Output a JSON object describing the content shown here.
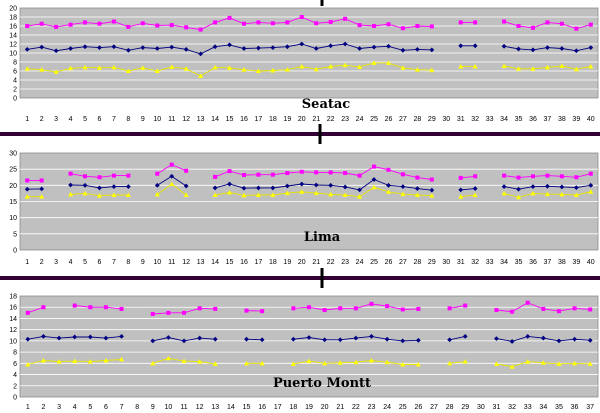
{
  "colors": {
    "max": "#ff00ff",
    "mean": "#000080",
    "min": "#ffff00",
    "plot_bg": "#c0c0c0",
    "grid": "#ffffff",
    "divider": "#330033"
  },
  "chart_data": [
    {
      "type": "line",
      "title": "Seatac",
      "ylim": [
        0,
        20
      ],
      "yticks": [
        0,
        2,
        4,
        6,
        8,
        10,
        12,
        14,
        16,
        18,
        20
      ],
      "grid": true,
      "legend": "none",
      "categories": [
        1,
        2,
        3,
        4,
        5,
        6,
        7,
        8,
        9,
        10,
        11,
        12,
        13,
        14,
        15,
        16,
        17,
        18,
        19,
        20,
        21,
        22,
        23,
        24,
        25,
        26,
        27,
        28,
        29,
        30,
        31,
        32,
        33,
        34,
        35,
        36,
        37,
        38,
        39,
        40
      ],
      "series": [
        {
          "key": "max",
          "values": [
            16.0,
            16.5,
            15.8,
            16.3,
            16.8,
            16.5,
            17.0,
            15.8,
            16.6,
            16.1,
            16.2,
            15.7,
            15.2,
            16.8,
            17.8,
            16.5,
            16.8,
            16.6,
            16.8,
            18.0,
            16.6,
            16.9,
            17.6,
            16.2,
            16.0,
            16.4,
            15.5,
            16.0,
            15.9,
            null,
            16.8,
            16.8,
            null,
            17.0,
            16.0,
            15.6,
            16.8,
            16.5,
            15.4,
            16.3
          ]
        },
        {
          "key": "mean",
          "values": [
            10.8,
            11.3,
            10.5,
            11.0,
            11.4,
            11.2,
            11.4,
            10.6,
            11.2,
            11.0,
            11.3,
            10.8,
            9.8,
            11.4,
            11.8,
            11.0,
            11.1,
            11.2,
            11.4,
            12.0,
            11.0,
            11.6,
            12.0,
            11.0,
            11.3,
            11.5,
            10.6,
            10.8,
            10.7,
            null,
            11.6,
            11.6,
            null,
            11.5,
            10.9,
            10.7,
            11.2,
            11.0,
            10.5,
            11.2
          ]
        },
        {
          "key": "min",
          "values": [
            6.5,
            6.3,
            5.8,
            6.6,
            6.8,
            6.7,
            6.8,
            6.0,
            6.7,
            6.0,
            6.9,
            6.5,
            4.9,
            6.8,
            6.7,
            6.3,
            6.0,
            6.1,
            6.3,
            7.0,
            6.4,
            7.0,
            7.3,
            6.9,
            7.8,
            7.8,
            6.7,
            6.3,
            6.2,
            null,
            7.0,
            7.0,
            null,
            7.1,
            6.5,
            6.5,
            6.8,
            7.1,
            6.4,
            7.0
          ]
        }
      ]
    },
    {
      "type": "line",
      "title": "Lima",
      "ylim": [
        0,
        30
      ],
      "yticks": [
        0,
        5,
        10,
        15,
        20,
        25,
        30
      ],
      "grid": true,
      "legend": "none",
      "categories": [
        1,
        2,
        3,
        4,
        5,
        6,
        7,
        8,
        9,
        10,
        11,
        12,
        13,
        14,
        15,
        16,
        17,
        18,
        19,
        20,
        21,
        22,
        23,
        24,
        25,
        26,
        27,
        28,
        29,
        30,
        31,
        32,
        33,
        34,
        35,
        36,
        37,
        38,
        39,
        40
      ],
      "series": [
        {
          "key": "max",
          "values": [
            21.5,
            21.5,
            null,
            23.6,
            22.8,
            22.5,
            23.0,
            23.0,
            null,
            23.6,
            26.4,
            24.5,
            null,
            22.6,
            24.4,
            23.2,
            23.3,
            23.3,
            23.8,
            24.2,
            24.0,
            24.0,
            23.8,
            23.0,
            25.8,
            24.8,
            23.4,
            22.4,
            21.8,
            null,
            22.3,
            22.8,
            null,
            23.0,
            22.4,
            22.8,
            23.0,
            22.8,
            22.5,
            23.6
          ]
        },
        {
          "key": "mean",
          "values": [
            18.8,
            18.9,
            null,
            20.1,
            20.0,
            19.2,
            19.6,
            19.6,
            null,
            20.0,
            22.8,
            19.8,
            null,
            19.2,
            20.4,
            19.1,
            19.2,
            19.2,
            19.8,
            20.4,
            20.1,
            20.0,
            19.5,
            18.6,
            21.8,
            20.0,
            19.6,
            19.0,
            18.5,
            null,
            18.6,
            19.0,
            null,
            19.6,
            18.8,
            19.6,
            19.7,
            19.5,
            19.3,
            20.0
          ]
        },
        {
          "key": "min",
          "values": [
            16.5,
            16.5,
            null,
            17.2,
            17.5,
            16.8,
            17.0,
            17.0,
            null,
            17.2,
            20.4,
            17.0,
            null,
            17.0,
            17.8,
            16.9,
            17.0,
            17.0,
            17.6,
            18.0,
            17.6,
            17.2,
            17.0,
            16.5,
            19.4,
            18.0,
            17.3,
            17.0,
            16.8,
            null,
            16.5,
            17.0,
            null,
            17.5,
            16.3,
            17.5,
            17.3,
            17.2,
            17.0,
            18.0
          ]
        }
      ]
    },
    {
      "type": "line",
      "title": "Puerto Montt",
      "ylim": [
        0,
        18
      ],
      "yticks": [
        0,
        2,
        4,
        6,
        8,
        10,
        12,
        14,
        16,
        18
      ],
      "grid": true,
      "legend": "none",
      "categories": [
        1,
        2,
        3,
        4,
        5,
        6,
        7,
        8,
        9,
        10,
        11,
        12,
        13,
        14,
        15,
        16,
        17,
        18,
        19,
        20,
        21,
        22,
        23,
        24,
        25,
        26,
        27,
        28,
        29,
        30,
        31,
        32,
        33,
        34,
        35,
        36,
        37
      ],
      "series": [
        {
          "key": "max",
          "values": [
            15.0,
            16.0,
            null,
            16.3,
            16.0,
            16.0,
            15.7,
            null,
            14.8,
            15.0,
            15.0,
            15.8,
            15.7,
            null,
            15.4,
            15.3,
            null,
            15.8,
            16.0,
            15.5,
            15.8,
            15.8,
            16.6,
            16.2,
            15.6,
            15.7,
            null,
            15.8,
            16.3,
            null,
            15.5,
            15.2,
            16.8,
            15.7,
            15.3,
            15.8,
            15.6
          ]
        },
        {
          "key": "mean",
          "values": [
            10.3,
            10.8,
            10.5,
            10.7,
            10.7,
            10.5,
            10.8,
            null,
            10.0,
            10.6,
            10.0,
            10.5,
            10.3,
            null,
            10.3,
            10.2,
            null,
            10.3,
            10.6,
            10.2,
            10.2,
            10.5,
            10.8,
            10.3,
            10.0,
            10.1,
            null,
            10.2,
            10.8,
            null,
            10.4,
            9.9,
            10.8,
            10.5,
            10.0,
            10.3,
            10.1
          ]
        },
        {
          "key": "min",
          "values": [
            5.8,
            6.5,
            6.3,
            6.4,
            6.3,
            6.5,
            6.7,
            null,
            6.0,
            6.9,
            6.4,
            6.3,
            5.9,
            null,
            6.0,
            6.0,
            null,
            5.9,
            6.4,
            6.0,
            6.1,
            6.2,
            6.5,
            6.2,
            5.8,
            5.8,
            null,
            6.0,
            6.3,
            null,
            5.9,
            5.4,
            6.3,
            6.1,
            5.9,
            6.0,
            5.9
          ]
        }
      ]
    }
  ]
}
